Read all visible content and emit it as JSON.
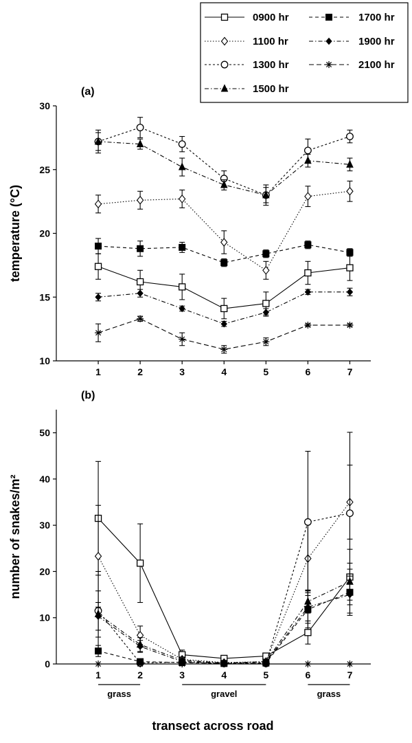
{
  "chart_data": [
    {
      "type": "line",
      "panel_label": "(a)",
      "xlabel": "",
      "ylabel": "temperature (°C)",
      "x": [
        1,
        2,
        3,
        4,
        5,
        6,
        7
      ],
      "xlim": [
        0,
        7.5
      ],
      "ylim": [
        10,
        30
      ],
      "yticks": [
        10,
        15,
        20,
        25,
        30
      ],
      "grid": false,
      "series": [
        {
          "name": "0900 hr",
          "marker": "open-square",
          "dash": "solid",
          "values": [
            17.4,
            16.2,
            15.8,
            14.1,
            14.5,
            16.9,
            17.3
          ],
          "errors": [
            1.0,
            0.9,
            1.0,
            0.8,
            0.9,
            0.9,
            1.0
          ]
        },
        {
          "name": "1100 hr",
          "marker": "open-diamond",
          "dash": "dotted",
          "values": [
            22.3,
            22.6,
            22.7,
            19.3,
            17.1,
            22.9,
            23.3
          ],
          "errors": [
            0.7,
            0.7,
            0.7,
            0.9,
            0.7,
            0.8,
            0.8
          ]
        },
        {
          "name": "1300 hr",
          "marker": "open-circle",
          "dash": "short-dash",
          "values": [
            27.2,
            28.3,
            27.0,
            24.3,
            23.0,
            26.5,
            27.6
          ],
          "errors": [
            0.9,
            0.8,
            0.6,
            0.6,
            0.8,
            0.9,
            0.5
          ]
        },
        {
          "name": "1500 hr",
          "marker": "filled-triangle",
          "dash": "dash-dot",
          "values": [
            27.2,
            27.0,
            25.2,
            23.8,
            23.0,
            25.7,
            25.4
          ],
          "errors": [
            0.7,
            0.4,
            0.7,
            0.4,
            0.6,
            0.5,
            0.5
          ]
        },
        {
          "name": "1700 hr",
          "marker": "filled-square",
          "dash": "dashed",
          "values": [
            19.0,
            18.8,
            18.9,
            17.7,
            18.4,
            19.1,
            18.5
          ],
          "errors": [
            0.6,
            0.6,
            0.4,
            0.3,
            0.3,
            0.3,
            0.3
          ]
        },
        {
          "name": "1900 hr",
          "marker": "filled-diamond",
          "dash": "dash-dot",
          "values": [
            15.0,
            15.3,
            14.1,
            12.9,
            13.8,
            15.4,
            15.4
          ],
          "errors": [
            0.3,
            0.3,
            0.2,
            0.2,
            0.3,
            0.2,
            0.3
          ]
        },
        {
          "name": "2100 hr",
          "marker": "asterisk",
          "dash": "long-dash",
          "values": [
            12.2,
            13.3,
            11.7,
            10.9,
            11.5,
            12.8,
            12.8
          ],
          "errors": [
            0.7,
            0.2,
            0.5,
            0.3,
            0.3,
            0.1,
            0.1
          ]
        }
      ]
    },
    {
      "type": "line",
      "panel_label": "(b)",
      "xlabel": "transect across road",
      "ylabel": "number of snakes/m²",
      "x": [
        1,
        2,
        3,
        4,
        5,
        6,
        7
      ],
      "xlim": [
        0,
        7.5
      ],
      "ylim": [
        0,
        55
      ],
      "yticks": [
        0,
        10,
        20,
        30,
        40,
        50
      ],
      "grid": false,
      "zones": [
        {
          "label": "grass",
          "from": 1,
          "to": 2
        },
        {
          "label": "gravel",
          "from": 3,
          "to": 5
        },
        {
          "label": "grass",
          "from": 6,
          "to": 7
        }
      ],
      "series": [
        {
          "name": "0900 hr",
          "marker": "open-square",
          "dash": "solid",
          "values": [
            31.5,
            21.8,
            2.0,
            1.2,
            1.7,
            6.8,
            18.8
          ],
          "errors": [
            12.3,
            8.5,
            1.0,
            0.5,
            0.5,
            2.5,
            6.0
          ]
        },
        {
          "name": "1100 hr",
          "marker": "open-diamond",
          "dash": "dotted",
          "values": [
            23.3,
            6.2,
            1.0,
            0.3,
            0.5,
            22.8,
            35.0
          ],
          "errors": [
            11.0,
            2.0,
            0.5,
            0.2,
            0.3,
            8.0,
            8.0
          ]
        },
        {
          "name": "1300 hr",
          "marker": "open-circle",
          "dash": "short-dash",
          "values": [
            11.5,
            0.2,
            0.4,
            0.1,
            0.1,
            30.7,
            32.6
          ],
          "errors": [
            8.5,
            0.2,
            0.3,
            0.1,
            0.1,
            15.3,
            17.5
          ]
        },
        {
          "name": "1500 hr",
          "marker": "filled-triangle",
          "dash": "dash-dot",
          "values": [
            10.8,
            4.2,
            0.8,
            0.2,
            0.5,
            13.5,
            17.8
          ],
          "errors": [
            5.0,
            1.5,
            0.4,
            0.1,
            0.3,
            2.5,
            4.0
          ]
        },
        {
          "name": "1700 hr",
          "marker": "filled-square",
          "dash": "dashed",
          "values": [
            2.8,
            0.5,
            0.3,
            0.1,
            0.2,
            11.8,
            15.5
          ],
          "errors": [
            1.2,
            0.3,
            0.2,
            0.1,
            0.1,
            4.0,
            5.0
          ]
        },
        {
          "name": "1900 hr",
          "marker": "filled-diamond",
          "dash": "dash-dot",
          "values": [
            10.3,
            3.8,
            0.5,
            0.2,
            0.4,
            12.3,
            15.0
          ],
          "errors": [
            3.0,
            1.3,
            0.3,
            0.1,
            0.2,
            3.5,
            4.0
          ]
        },
        {
          "name": "2100 hr",
          "marker": "asterisk",
          "dash": "long-dash",
          "values": [
            0,
            0,
            0,
            0,
            0,
            0,
            0
          ],
          "errors": [
            0,
            0,
            0,
            0,
            0,
            0,
            0
          ]
        }
      ]
    }
  ],
  "legend": {
    "placement": "top-right",
    "items": [
      "0900 hr",
      "1100 hr",
      "1300 hr",
      "1500 hr",
      "1700 hr",
      "1900 hr",
      "2100 hr"
    ]
  },
  "colors": {
    "ink": "#000000",
    "background": "#ffffff"
  }
}
